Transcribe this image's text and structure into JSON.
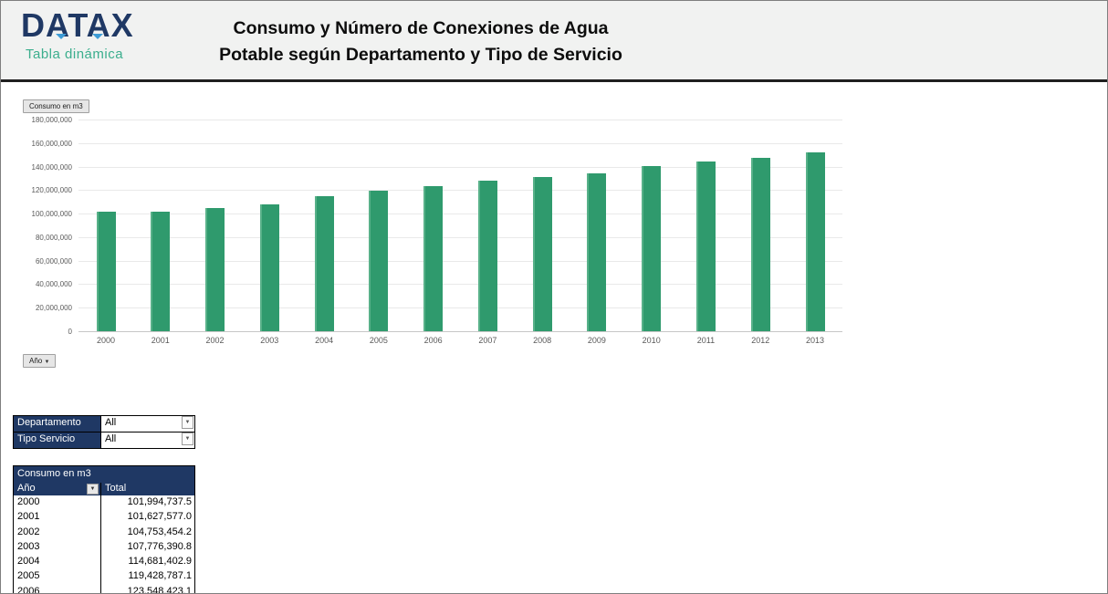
{
  "header": {
    "logo_text": "DATAX",
    "logo_subtitle": "Tabla dinámica",
    "title_line1": "Consumo y Número de Conexiones de Agua",
    "title_line2": "Potable según Departamento y Tipo de Servicio"
  },
  "chart": {
    "field_button_label": "Consumo en m3",
    "axis_button_label": "Año",
    "dropdown_arrow": "▼"
  },
  "chart_data": {
    "type": "bar",
    "title": "Consumo en m3",
    "categories": [
      "2000",
      "2001",
      "2002",
      "2003",
      "2004",
      "2005",
      "2006",
      "2007",
      "2008",
      "2009",
      "2010",
      "2011",
      "2012",
      "2013"
    ],
    "values": [
      101994737.5,
      101627577.0,
      104753454.2,
      107776390.8,
      114681402.9,
      119428787.1,
      123548423.1,
      127800000,
      131300000,
      134300000,
      140200000,
      144200000,
      147600000,
      152300000
    ],
    "xlabel": "Año",
    "ylabel": "Consumo en m3",
    "ylim": [
      0,
      180000000
    ],
    "ytick_step": 20000000,
    "grid": true,
    "legend": false,
    "bar_color": "#2f9a6d"
  },
  "filters": {
    "rows": [
      {
        "label": "Departamento",
        "value": "All"
      },
      {
        "label": "Tipo Servicio",
        "value": "All"
      }
    ]
  },
  "pivot_table": {
    "title": "Consumo en m3",
    "columns": [
      "Año",
      "Total"
    ],
    "rows": [
      [
        "2000",
        "101,994,737.5"
      ],
      [
        "2001",
        "101,627,577.0"
      ],
      [
        "2002",
        "104,753,454.2"
      ],
      [
        "2003",
        "107,776,390.8"
      ],
      [
        "2004",
        "114,681,402.9"
      ],
      [
        "2005",
        "119,428,787.1"
      ],
      [
        "2006",
        "123,548,423.1"
      ]
    ]
  },
  "colors": {
    "navy": "#1f3864",
    "bar_green": "#2f9a6d",
    "brand_green": "#3bae8d",
    "header_bg": "#f1f2f1"
  }
}
